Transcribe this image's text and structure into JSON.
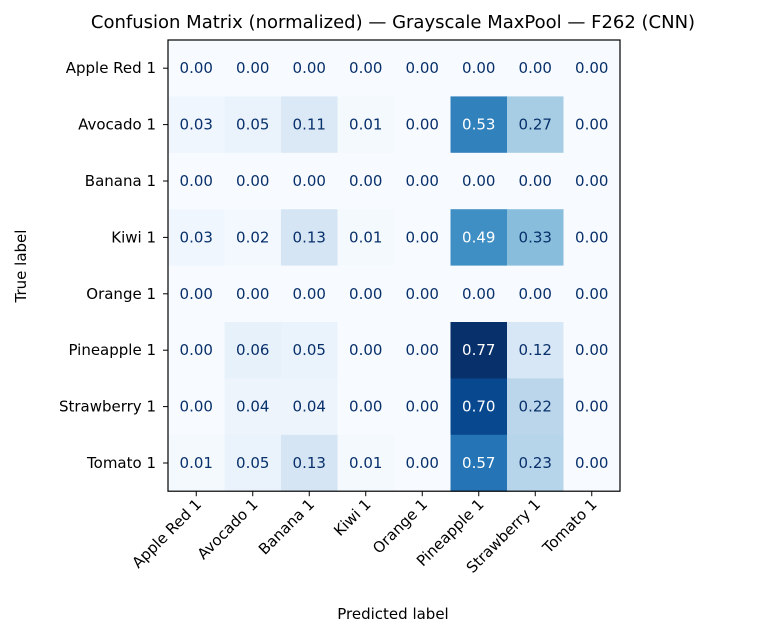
{
  "chart_data": {
    "type": "heatmap",
    "title": "Confusion Matrix (normalized) — Grayscale MaxPool — F262 (CNN)",
    "xlabel": "Predicted label",
    "ylabel": "True label",
    "row_labels": [
      "Apple Red 1",
      "Avocado 1",
      "Banana 1",
      "Kiwi 1",
      "Orange 1",
      "Pineapple 1",
      "Strawberry 1",
      "Tomato 1"
    ],
    "col_labels": [
      "Apple Red 1",
      "Avocado 1",
      "Banana 1",
      "Kiwi 1",
      "Orange 1",
      "Pineapple 1",
      "Strawberry 1",
      "Tomato 1"
    ],
    "values": [
      [
        0.0,
        0.0,
        0.0,
        0.0,
        0.0,
        0.0,
        0.0,
        0.0
      ],
      [
        0.03,
        0.05,
        0.11,
        0.01,
        0.0,
        0.53,
        0.27,
        0.0
      ],
      [
        0.0,
        0.0,
        0.0,
        0.0,
        0.0,
        0.0,
        0.0,
        0.0
      ],
      [
        0.03,
        0.02,
        0.13,
        0.01,
        0.0,
        0.49,
        0.33,
        0.0
      ],
      [
        0.0,
        0.0,
        0.0,
        0.0,
        0.0,
        0.0,
        0.0,
        0.0
      ],
      [
        0.0,
        0.06,
        0.05,
        0.0,
        0.0,
        0.77,
        0.12,
        0.0
      ],
      [
        0.0,
        0.04,
        0.04,
        0.0,
        0.0,
        0.7,
        0.22,
        0.0
      ],
      [
        0.01,
        0.05,
        0.13,
        0.01,
        0.0,
        0.57,
        0.23,
        0.0
      ]
    ],
    "value_format": "0.00",
    "colormap": "Blues",
    "vmin": 0.0,
    "vmax": 0.77,
    "colors": {
      "low": "#f7fbff",
      "high": "#08306b",
      "text_dark": "#08306b",
      "text_light": "#ffffff"
    },
    "grid": false
  }
}
